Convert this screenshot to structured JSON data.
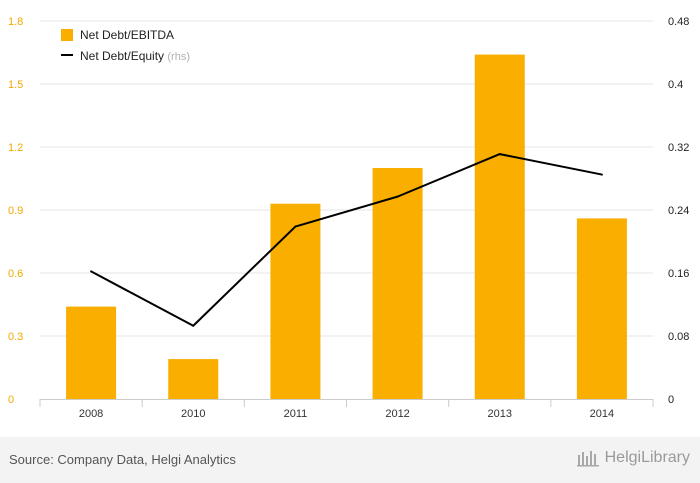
{
  "chart_data": {
    "type": "bar",
    "categories": [
      "2008",
      "2010",
      "2011",
      "2012",
      "2013",
      "2014"
    ],
    "series": [
      {
        "name": "Net Debt/EBITDA",
        "type": "bar",
        "axis": "left",
        "color": "#f9ae00",
        "values": [
          0.44,
          0.19,
          0.93,
          1.1,
          1.64,
          0.86
        ]
      },
      {
        "name": "Net Debt/Equity",
        "suffix": "(rhs)",
        "type": "line",
        "axis": "right",
        "color": "#000000",
        "values": [
          0.162,
          0.093,
          0.219,
          0.257,
          0.311,
          0.285
        ]
      }
    ],
    "left_axis": {
      "ticks": [
        "0",
        "0.3",
        "0.6",
        "0.9",
        "1.2",
        "1.5",
        "1.8"
      ],
      "range": [
        0,
        1.8
      ],
      "color": "#f2a900"
    },
    "right_axis": {
      "ticks": [
        "0",
        "0.08",
        "0.16",
        "0.24",
        "0.32",
        "0.4",
        "0.48"
      ],
      "range": [
        0,
        0.48
      ]
    },
    "grid": true,
    "legend": "top-left"
  },
  "footer": {
    "source": "Source: Company Data, Helgi Analytics",
    "brand": "HelgiLibrary"
  }
}
